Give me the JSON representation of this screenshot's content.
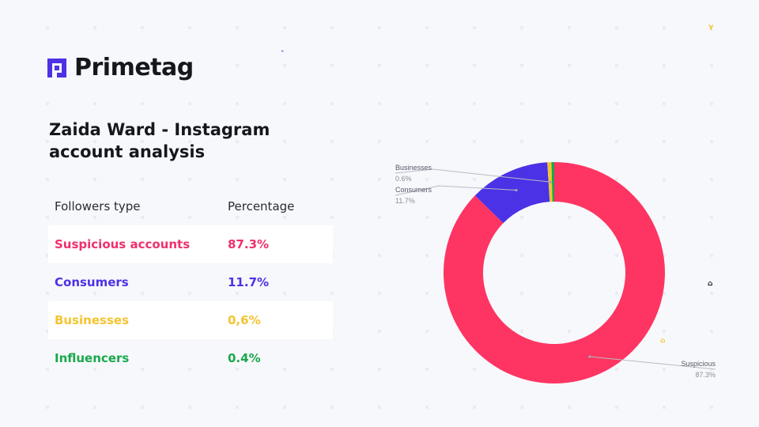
{
  "brand": {
    "name": "Primetag",
    "accent": "#4b32e6"
  },
  "title": "Zaida Ward - Instagram account analysis",
  "table": {
    "headers": [
      "Followers type",
      "Percentage"
    ],
    "rows": [
      {
        "label": "Suspicious accounts",
        "value": "87.3%",
        "color": "#f0306a"
      },
      {
        "label": "Consumers",
        "value": "11.7%",
        "color": "#4b32e6"
      },
      {
        "label": "Businesses",
        "value": "0,6%",
        "color": "#f5c430"
      },
      {
        "label": "Influencers",
        "value": "0.4%",
        "color": "#1aa84a"
      }
    ]
  },
  "chart_data": {
    "type": "pie",
    "donut": true,
    "slices": [
      {
        "label": "Suspicious",
        "display": "87.3%",
        "value": 87.3,
        "color": "#fe3562"
      },
      {
        "label": "Consumers",
        "display": "11.7%",
        "value": 11.7,
        "color": "#4b32e6"
      },
      {
        "label": "Businesses",
        "display": "0.6%",
        "value": 0.6,
        "color": "#f5c430"
      },
      {
        "label": "",
        "display": "",
        "value": 0.4,
        "color": "#1aa84a"
      }
    ]
  }
}
